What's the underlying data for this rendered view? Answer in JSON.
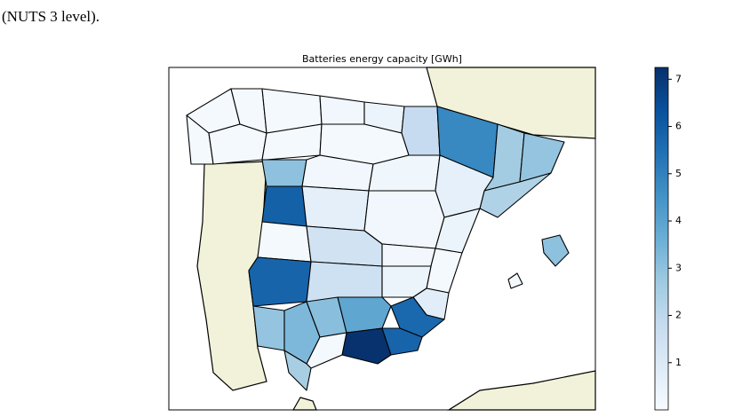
{
  "caption_fragment": "(NUTS 3 level).",
  "chart_data": {
    "type": "choropleth",
    "title": "Batteries energy capacity [GWh]",
    "colormap": "Blues",
    "values": [
      0.1,
      0.1,
      0.1,
      0.1,
      0.1,
      0.2,
      0.4,
      1.8,
      4.8,
      2.6,
      2.9,
      2.3,
      0.1,
      0.1,
      3.0,
      0.2,
      0.3,
      0.6,
      5.9,
      0.7,
      0.2,
      0.4,
      0.1,
      1.4,
      0.2,
      0.1,
      5.8,
      1.5,
      0.4,
      0.8,
      5.7,
      2.9,
      3.3,
      3.1,
      3.9,
      7.2,
      5.8,
      0.1,
      2.5,
      3.0,
      0.1
    ],
    "clim": [
      0,
      7.25
    ],
    "cticks": [
      1,
      2,
      3,
      4,
      5,
      6,
      7
    ]
  }
}
